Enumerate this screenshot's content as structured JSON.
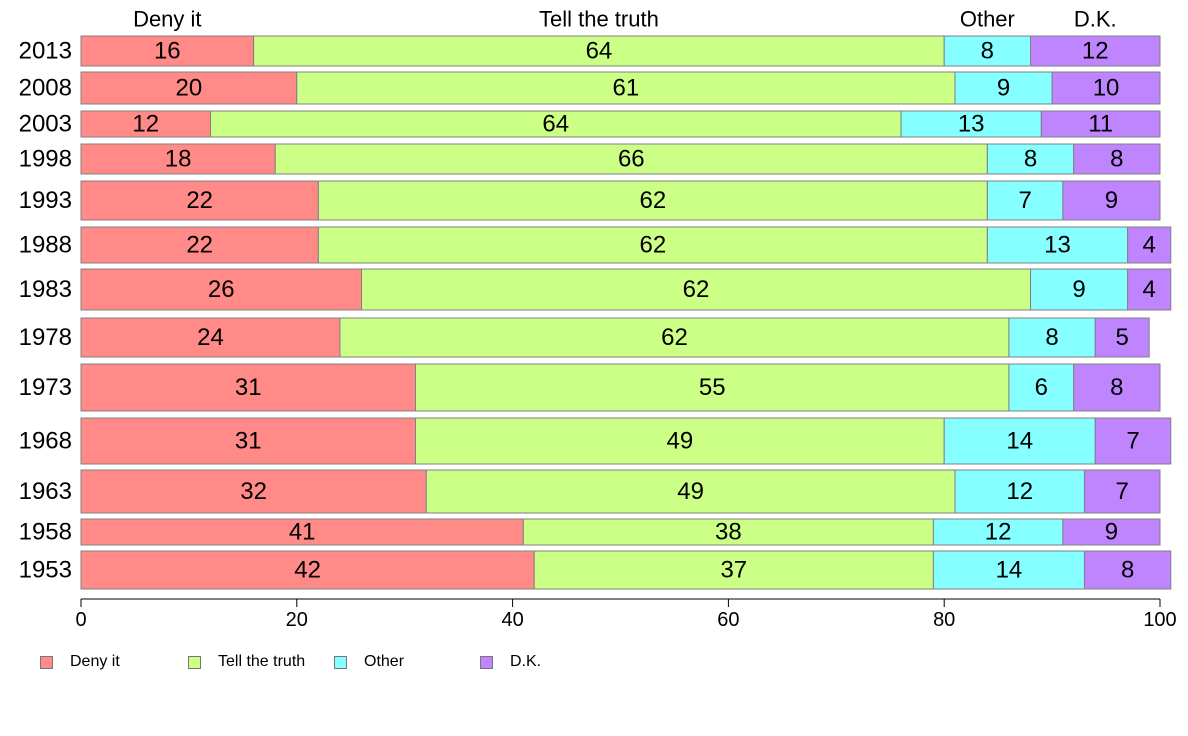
{
  "chart_data": {
    "type": "bar",
    "orientation": "horizontal",
    "stacked": true,
    "categories": [
      "2013",
      "2008",
      "2003",
      "1998",
      "1993",
      "1988",
      "1983",
      "1978",
      "1973",
      "1968",
      "1963",
      "1958",
      "1953"
    ],
    "series": [
      {
        "name": "Deny it",
        "color": "#FF8A87",
        "values": [
          16,
          20,
          12,
          18,
          22,
          22,
          26,
          24,
          31,
          31,
          32,
          41,
          42
        ]
      },
      {
        "name": "Tell the truth",
        "color": "#CCFF85",
        "values": [
          64,
          61,
          64,
          66,
          62,
          62,
          62,
          62,
          55,
          49,
          49,
          38,
          37
        ]
      },
      {
        "name": "Other",
        "color": "#85FFFF",
        "values": [
          8,
          9,
          13,
          8,
          7,
          13,
          9,
          8,
          6,
          14,
          12,
          12,
          14
        ]
      },
      {
        "name": "D.K.",
        "color": "#BF85FF",
        "values": [
          12,
          10,
          11,
          8,
          9,
          4,
          4,
          5,
          8,
          7,
          7,
          9,
          8
        ]
      }
    ],
    "xlim": [
      0,
      100
    ],
    "xticks": [
      "0",
      "20",
      "40",
      "60",
      "80",
      "100"
    ],
    "column_headers": [
      "Deny it",
      "Tell the truth",
      "Other",
      "D.K."
    ],
    "legend_placement": "bottom-left",
    "grid": false
  },
  "legend": {
    "items": [
      "Deny it",
      "Tell the truth",
      "Other",
      "D.K."
    ]
  }
}
